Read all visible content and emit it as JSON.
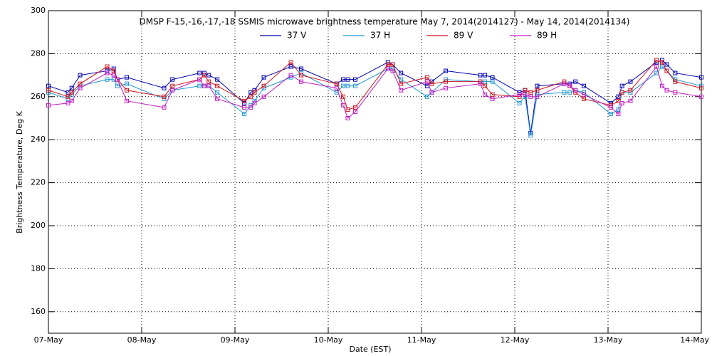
{
  "chart_data": {
    "type": "line",
    "title": "DMSP F-15,-16,-17,-18 SSMIS microwave brightness temperature May  7, 2014(2014127) - May 14, 2014(2014134)",
    "xlabel": "Date (EST)",
    "ylabel": "Brightness Temperature, Deg K",
    "x": [
      7.0,
      7.21,
      7.25,
      7.34,
      7.63,
      7.7,
      7.74,
      7.84,
      8.24,
      8.33,
      8.62,
      8.67,
      8.72,
      8.81,
      9.1,
      9.17,
      9.21,
      9.31,
      9.6,
      9.71,
      10.09,
      10.16,
      10.21,
      10.29,
      10.64,
      10.69,
      10.78,
      11.06,
      11.11,
      11.26,
      11.63,
      11.68,
      11.76,
      12.05,
      12.11,
      12.17,
      12.24,
      12.53,
      12.59,
      12.65,
      12.74,
      13.03,
      13.11,
      13.15,
      13.24,
      13.52,
      13.58,
      13.63,
      13.72,
      14.0
    ],
    "series": [
      {
        "name": "37 V",
        "color": "#0000b4",
        "values": [
          265,
          262,
          264,
          270,
          272,
          273,
          268,
          269,
          264,
          268,
          271,
          271,
          270,
          268,
          257,
          262,
          263,
          269,
          274,
          273,
          266,
          268,
          268,
          268,
          276,
          275,
          271,
          265,
          267,
          272,
          270,
          270,
          269,
          262,
          263,
          243,
          265,
          266,
          266,
          267,
          265,
          257,
          260,
          265,
          267,
          276,
          277,
          275,
          271,
          269
        ]
      },
      {
        "name": "37 H",
        "color": "#1e96d2",
        "values": [
          262,
          259,
          261,
          265,
          268,
          268,
          265,
          266,
          259,
          263,
          265,
          265,
          265,
          262,
          252,
          256,
          258,
          264,
          269,
          271,
          262,
          265,
          265,
          265,
          273,
          273,
          268,
          260,
          262,
          268,
          267,
          267,
          267,
          257,
          260,
          242,
          261,
          262,
          262,
          263,
          262,
          252,
          254,
          262,
          262,
          271,
          274,
          272,
          268,
          265
        ]
      },
      {
        "name": "89 V",
        "color": "#d2141e",
        "values": [
          263,
          260,
          262,
          266,
          274,
          272,
          268,
          263,
          260,
          265,
          268,
          270,
          267,
          265,
          258,
          260,
          262,
          265,
          276,
          270,
          266,
          260,
          254,
          255,
          275,
          275,
          266,
          269,
          266,
          267,
          267,
          265,
          261,
          260,
          263,
          262,
          263,
          267,
          265,
          262,
          259,
          256,
          258,
          262,
          263,
          277,
          276,
          272,
          267,
          264
        ]
      },
      {
        "name": "89 H",
        "color": "#c31ec3",
        "values": [
          256,
          257,
          258,
          264,
          271,
          270,
          268,
          258,
          255,
          263,
          268,
          265,
          265,
          259,
          255,
          255,
          257,
          260,
          270,
          267,
          264,
          256,
          250,
          253,
          273,
          272,
          263,
          267,
          262,
          264,
          266,
          261,
          259,
          261,
          261,
          260,
          260,
          266,
          265,
          263,
          261,
          255,
          252,
          257,
          258,
          274,
          265,
          263,
          262,
          260
        ]
      }
    ],
    "xlim": [
      7,
      14
    ],
    "xticks": [
      {
        "value": 7,
        "label": "07-May"
      },
      {
        "value": 8,
        "label": "08-May"
      },
      {
        "value": 9,
        "label": "09-May"
      },
      {
        "value": 10,
        "label": "10-May"
      },
      {
        "value": 11,
        "label": "11-May"
      },
      {
        "value": 12,
        "label": "12-May"
      },
      {
        "value": 13,
        "label": "13-May"
      },
      {
        "value": 14,
        "label": "14-May"
      }
    ],
    "ylim": [
      150,
      300
    ],
    "yticks": [
      160,
      180,
      200,
      220,
      240,
      260,
      280,
      300
    ],
    "grid": true
  }
}
